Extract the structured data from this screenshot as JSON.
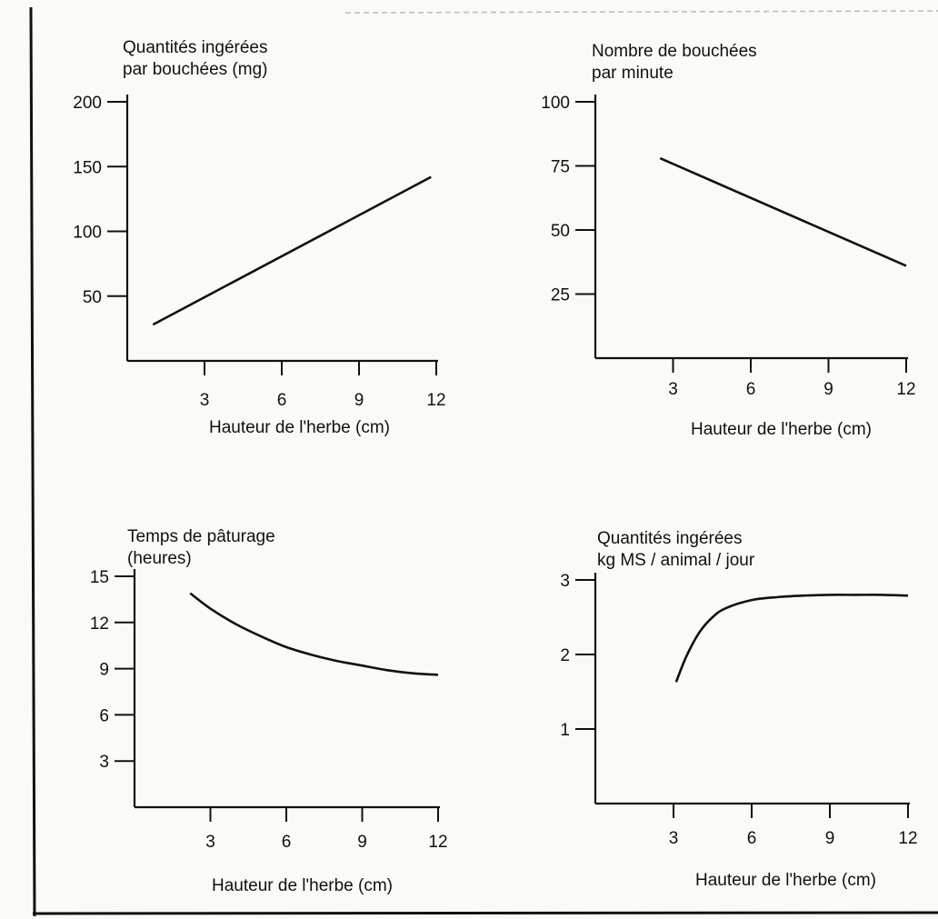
{
  "chart_data": [
    {
      "type": "line",
      "title_lines": [
        "Quantités ingérées",
        "par bouchées (mg)"
      ],
      "xlabel": "Hauteur de l'herbe (cm)",
      "ylabel": "",
      "xlim": [
        0,
        12
      ],
      "ylim": [
        0,
        200
      ],
      "x_ticks": [
        3,
        6,
        9,
        12
      ],
      "y_ticks": [
        50,
        100,
        150,
        200
      ],
      "grid": false,
      "series": [
        {
          "x": [
            1.0,
            11.8
          ],
          "y": [
            28,
            142
          ]
        }
      ]
    },
    {
      "type": "line",
      "title_lines": [
        "Nombre de bouchées",
        "par minute"
      ],
      "xlabel": "Hauteur de l'herbe (cm)",
      "ylabel": "",
      "xlim": [
        0,
        12
      ],
      "ylim": [
        0,
        100
      ],
      "x_ticks": [
        3,
        6,
        9,
        12
      ],
      "y_ticks": [
        25,
        50,
        75,
        100
      ],
      "grid": false,
      "series": [
        {
          "x": [
            2.5,
            12.0
          ],
          "y": [
            78,
            36
          ]
        }
      ]
    },
    {
      "type": "line",
      "title_lines": [
        "Temps de pâturage",
        "(heures)"
      ],
      "xlabel": "Hauteur de l'herbe (cm)",
      "ylabel": "",
      "xlim": [
        0,
        12
      ],
      "ylim": [
        0,
        15
      ],
      "x_ticks": [
        3,
        6,
        9,
        12
      ],
      "y_ticks": [
        3,
        6,
        9,
        12,
        15
      ],
      "grid": false,
      "series": [
        {
          "x": [
            2.2,
            3,
            4,
            5,
            6,
            7,
            8,
            9,
            10,
            11,
            12
          ],
          "y": [
            13.9,
            12.9,
            11.9,
            11.1,
            10.4,
            9.9,
            9.5,
            9.2,
            8.9,
            8.7,
            8.6
          ]
        }
      ]
    },
    {
      "type": "line",
      "title_lines": [
        "Quantités ingérées",
        "kg MS / animal / jour"
      ],
      "xlabel": "Hauteur de l'herbe (cm)",
      "ylabel": "",
      "xlim": [
        0,
        12
      ],
      "ylim": [
        0,
        3
      ],
      "x_ticks": [
        3,
        6,
        9,
        12
      ],
      "y_ticks": [
        1,
        2,
        3
      ],
      "grid": false,
      "series": [
        {
          "x": [
            3.1,
            3.5,
            4,
            4.5,
            5,
            6,
            7,
            8,
            9,
            10,
            11,
            12
          ],
          "y": [
            1.63,
            1.98,
            2.3,
            2.5,
            2.62,
            2.73,
            2.77,
            2.79,
            2.8,
            2.8,
            2.8,
            2.79
          ]
        }
      ]
    }
  ]
}
